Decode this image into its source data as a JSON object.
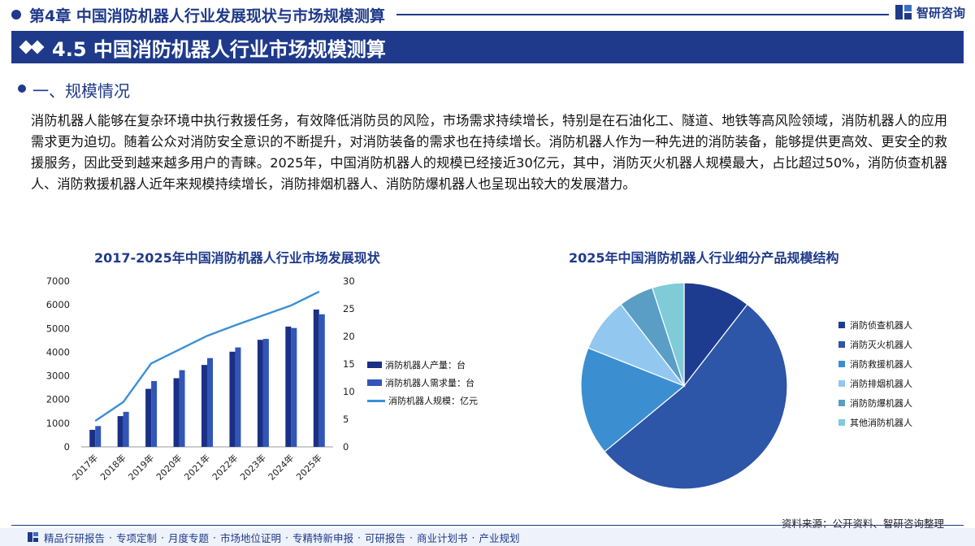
{
  "header": {
    "chapter_title": "第4章  中国消防机器人行业发展现状与市场规模测算",
    "logo_text": "智研咨询",
    "section_title": "4.5 中国消防机器人行业市场规模测算",
    "subhead": "一、规模情况"
  },
  "body": {
    "paragraph": "消防机器人能够在复杂环境中执行救援任务，有效降低消防员的风险，市场需求持续增长，特别是在石油化工、隧道、地铁等高风险领域，消防机器人的应用需求更为迫切。随着公众对消防安全意识的不断提升，对消防装备的需求也在持续增长。消防机器人作为一种先进的消防装备，能够提供更高效、更安全的救援服务，因此受到越来越多用户的青睐。2025年，中国消防机器人的规模已经接近30亿元，其中，消防灭火机器人规模最大，占比超过50%，消防侦查机器人、消防救援机器人近年来规模持续增长，消防排烟机器人、消防防爆机器人也呈现出较大的发展潜力。"
  },
  "colors": {
    "brand": "#1f3a8a",
    "production": "#1a2f86",
    "demand": "#3156b8",
    "scale_line": "#3a8fd6"
  },
  "chart_data": [
    {
      "type": "bar",
      "title": "2017-2025年中国消防机器人行业市场发展现状",
      "categories": [
        "2017年",
        "2018年",
        "2019年",
        "2020年",
        "2021年",
        "2022年",
        "2023年",
        "2024年",
        "2025年"
      ],
      "series": [
        {
          "name": "消防机器人产量：台",
          "type": "bar",
          "axis": "left",
          "color": "#1a2f86",
          "values": [
            720,
            1300,
            2450,
            2900,
            3460,
            4020,
            4520,
            5080,
            5800
          ]
        },
        {
          "name": "消防机器人需求量：台",
          "type": "bar",
          "axis": "left",
          "color": "#3156b8",
          "values": [
            880,
            1480,
            2780,
            3240,
            3750,
            4200,
            4560,
            5020,
            5600
          ]
        },
        {
          "name": "消防机器人规模：亿元",
          "type": "line",
          "axis": "right",
          "color": "#3a8fd6",
          "values": [
            4.7,
            8.1,
            15.1,
            17.6,
            20.1,
            22.0,
            23.8,
            25.6,
            28.1
          ]
        }
      ],
      "y_left": {
        "min": 0,
        "max": 7000,
        "ticks": [
          0,
          1000,
          2000,
          3000,
          4000,
          5000,
          6000,
          7000
        ]
      },
      "y_right": {
        "min": 0,
        "max": 30,
        "ticks": [
          0,
          5,
          10,
          15,
          20,
          25,
          30
        ]
      },
      "grid": false,
      "legend_position": "right"
    },
    {
      "type": "pie",
      "title": "2025年中国消防机器人行业细分产品规模结构",
      "slices": [
        {
          "label": "消防侦查机器人",
          "value": 10.5,
          "color": "#1e3c8f"
        },
        {
          "label": "消防灭火机器人",
          "value": 53.5,
          "color": "#2d55a8"
        },
        {
          "label": "消防救援机器人",
          "value": 17.0,
          "color": "#3b8fd1"
        },
        {
          "label": "消防排烟机器人",
          "value": 8.5,
          "color": "#92c8f0"
        },
        {
          "label": "消防防爆机器人",
          "value": 5.5,
          "color": "#5a9ec6"
        },
        {
          "label": "其他消防机器人",
          "value": 5.0,
          "color": "#7fcbd8"
        }
      ],
      "start_angle_deg": 0,
      "direction": "clockwise",
      "legend_position": "right"
    }
  ],
  "footer": {
    "source": "资料来源：公开资料、智研咨询整理",
    "items": [
      "精品行研报告",
      "专项定制",
      "月度专题",
      "市场地位证明",
      "专精特新申报",
      "可研报告",
      "商业计划书",
      "产业规划"
    ],
    "separator": "·"
  }
}
